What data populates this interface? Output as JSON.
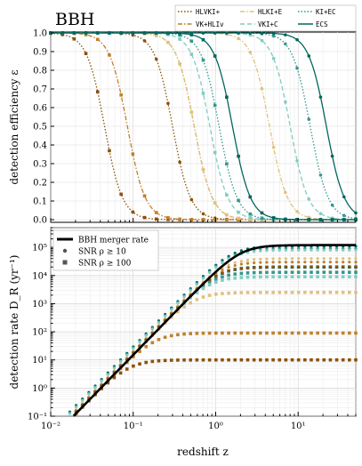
{
  "chart_data": [
    {
      "type": "line",
      "title": "BBH",
      "ylabel": "detection efficiency ε",
      "xscale": "log",
      "xlim": [
        0.01,
        50
      ],
      "ylim": [
        0,
        1.0
      ],
      "yticks": [
        "0.0",
        "0.1",
        "0.2",
        "0.3",
        "0.4",
        "0.5",
        "0.6",
        "0.7",
        "0.8",
        "0.9",
        "1.0"
      ],
      "grid": true,
      "legend": {
        "placement": "top-right",
        "entries": [
          {
            "name": "HLVKI+",
            "color": "#8c510a",
            "style": "dotted"
          },
          {
            "name": "VK+HLIv",
            "color": "#bf812d",
            "style": "dashdot"
          },
          {
            "name": "HLKI+E",
            "color": "#dfc27d",
            "style": "dashdot"
          },
          {
            "name": "VKI+C",
            "color": "#80cdc1",
            "style": "dashed"
          },
          {
            "name": "KI+EC",
            "color": "#35978f",
            "style": "dotted"
          },
          {
            "name": "ECS",
            "color": "#01665e",
            "style": "solid"
          }
        ]
      },
      "series": [
        {
          "name": "HLVKI+",
          "color": "#8c510a",
          "z50_snr10": 0.3,
          "z50_snr100": 0.045
        },
        {
          "name": "VK+HLIv",
          "color": "#bf812d",
          "z50_snr10": 0.55,
          "z50_snr100": 0.085
        },
        {
          "name": "HLKI+E",
          "color": "#dfc27d",
          "z50_snr10": 4.5,
          "z50_snr100": 0.55
        },
        {
          "name": "VKI+C",
          "color": "#80cdc1",
          "z50_snr10": 8.0,
          "z50_snr100": 0.85
        },
        {
          "name": "KI+EC",
          "color": "#35978f",
          "z50_snr10": 14,
          "z50_snr100": 1.1
        },
        {
          "name": "ECS",
          "color": "#01665e",
          "z50_snr10": 22,
          "z50_snr100": 1.6
        }
      ]
    },
    {
      "type": "line",
      "xlabel": "redshift z",
      "ylabel": "detection rate D_R (yr⁻¹)",
      "xscale": "log",
      "yscale": "log",
      "xlim": [
        0.01,
        50
      ],
      "ylim": [
        0.1,
        500000
      ],
      "xticks": [
        "10⁻²",
        "10⁻¹",
        "10⁰",
        "10¹"
      ],
      "yticks": [
        "10⁻¹",
        "10⁰",
        "10¹",
        "10²",
        "10³",
        "10⁴",
        "10⁵"
      ],
      "grid": true,
      "legend": {
        "placement": "top-left",
        "entries": [
          {
            "name": "BBH merger rate",
            "style": "solid-thick"
          },
          {
            "name": "SNR ρ ≥ 10",
            "style": "circle-dots"
          },
          {
            "name": "SNR ρ ≥ 100",
            "style": "square-dots"
          }
        ]
      },
      "merger_rate": {
        "color": "#000000",
        "plateau": 120000,
        "z_turnover": 2.0
      },
      "series": [
        {
          "name": "ECS",
          "color": "#01665e",
          "plateau_snr10": 110000,
          "plateau_snr100": 20000
        },
        {
          "name": "KI+EC",
          "color": "#35978f",
          "plateau_snr10": 90000,
          "plateau_snr100": 13000
        },
        {
          "name": "VKI+C",
          "color": "#80cdc1",
          "plateau_snr10": 80000,
          "plateau_snr100": 9000
        },
        {
          "name": "HLKI+E",
          "color": "#dfc27d",
          "plateau_snr10": 40000,
          "plateau_snr100": 2500
        },
        {
          "name": "VK+HLIv",
          "color": "#bf812d",
          "plateau_snr10": 30000,
          "plateau_snr100": 90
        },
        {
          "name": "HLVKI+",
          "color": "#8c510a",
          "plateau_snr10": 20000,
          "plateau_snr100": 10
        }
      ]
    }
  ]
}
